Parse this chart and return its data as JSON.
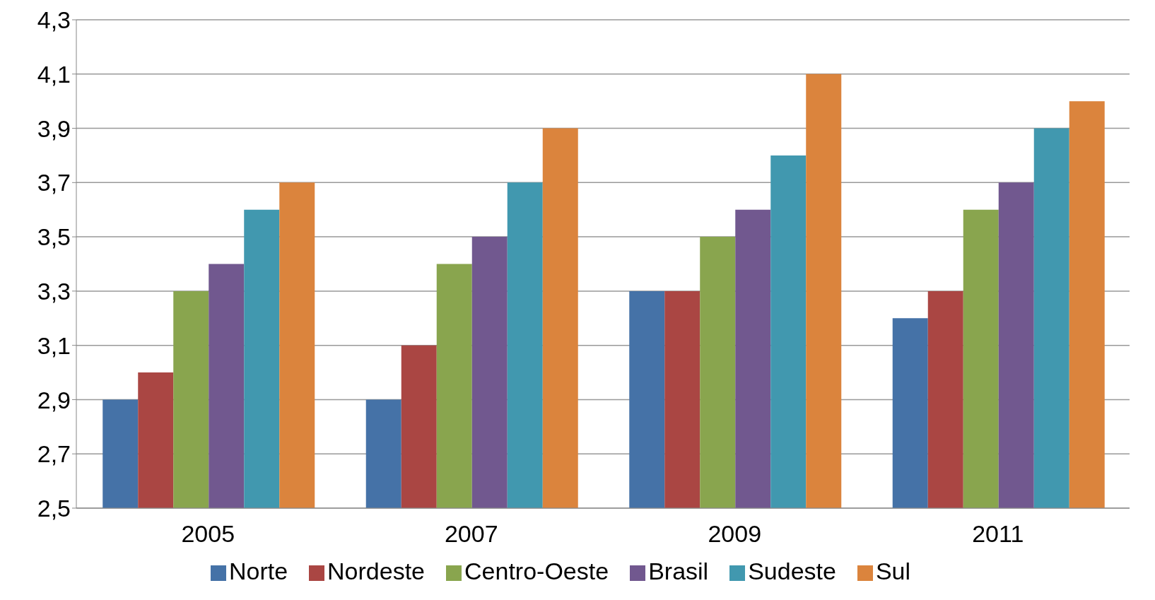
{
  "chart_data": {
    "type": "bar",
    "categories": [
      "2005",
      "2007",
      "2009",
      "2011"
    ],
    "series": [
      {
        "name": "Norte",
        "color": "#4572a7",
        "values": [
          2.9,
          2.9,
          3.3,
          3.2
        ]
      },
      {
        "name": "Nordeste",
        "color": "#aa4643",
        "values": [
          3.0,
          3.1,
          3.3,
          3.3
        ]
      },
      {
        "name": "Centro-Oeste",
        "color": "#89a54e",
        "values": [
          3.3,
          3.4,
          3.5,
          3.6
        ]
      },
      {
        "name": "Brasil",
        "color": "#71588f",
        "values": [
          3.4,
          3.5,
          3.6,
          3.7
        ]
      },
      {
        "name": "Sudeste",
        "color": "#4198af",
        "values": [
          3.6,
          3.7,
          3.8,
          3.9
        ]
      },
      {
        "name": "Sul",
        "color": "#db843d",
        "values": [
          3.7,
          3.9,
          4.1,
          4.0
        ]
      }
    ],
    "ylim": [
      2.5,
      4.3
    ],
    "yticks": [
      {
        "value": 2.5,
        "label": "2,5"
      },
      {
        "value": 2.7,
        "label": "2,7"
      },
      {
        "value": 2.9,
        "label": "2,9"
      },
      {
        "value": 3.1,
        "label": "3,1"
      },
      {
        "value": 3.3,
        "label": "3,3"
      },
      {
        "value": 3.5,
        "label": "3,5"
      },
      {
        "value": 3.7,
        "label": "3,7"
      },
      {
        "value": 3.9,
        "label": "3,9"
      },
      {
        "value": 4.1,
        "label": "4,1"
      },
      {
        "value": 4.3,
        "label": "4,3"
      }
    ],
    "grid": "y",
    "legend": "bottom"
  }
}
